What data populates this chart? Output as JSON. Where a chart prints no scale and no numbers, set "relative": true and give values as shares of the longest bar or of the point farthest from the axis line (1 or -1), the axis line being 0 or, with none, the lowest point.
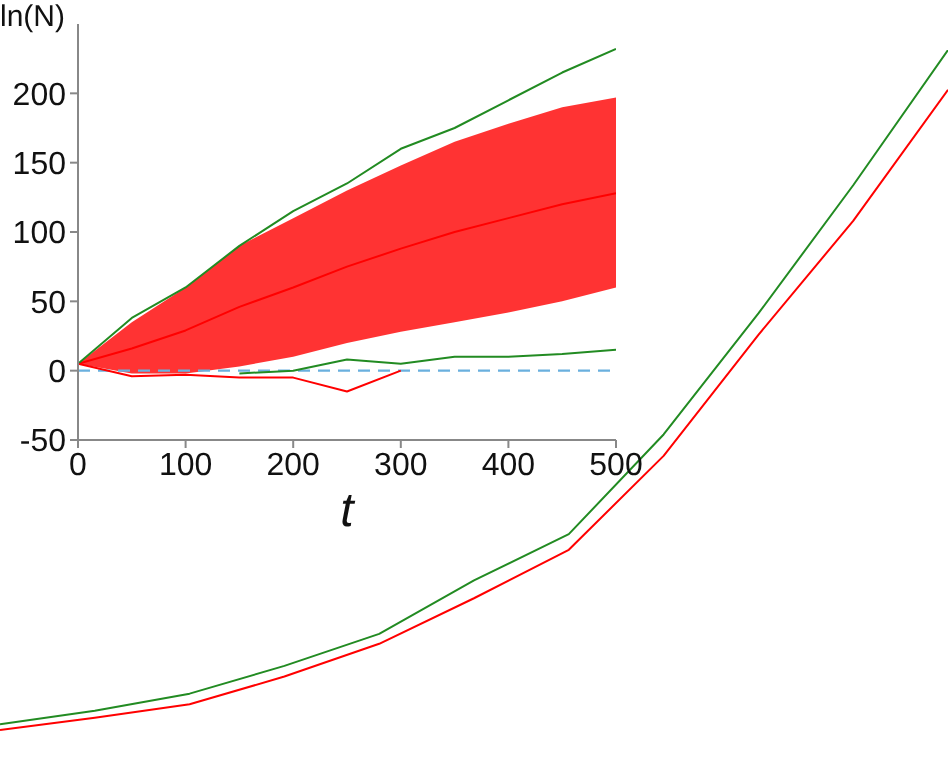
{
  "chart_data": [
    {
      "type": "line",
      "categories": [
        null,
        null,
        null,
        null,
        null,
        null,
        null,
        null,
        null,
        null,
        null
      ],
      "relative": true,
      "grid": false,
      "legend": false,
      "series": [
        {
          "color": "#228b22",
          "values": [
            0.053,
            0.072,
            0.096,
            0.135,
            0.18,
            0.255,
            0.32,
            0.46,
            0.63,
            0.81,
            1.0
          ]
        },
        {
          "color": "#ff0000",
          "values": [
            0.045,
            0.062,
            0.081,
            0.12,
            0.166,
            0.23,
            0.298,
            0.43,
            0.6,
            0.76,
            0.944
          ]
        }
      ]
    },
    {
      "type": "line",
      "xlabel": "t",
      "ylabel": "ln(N)",
      "xlim": [
        0,
        500
      ],
      "ylim": [
        -50,
        250
      ],
      "xticks": [
        0,
        100,
        200,
        300,
        400,
        500
      ],
      "yticks": [
        -50,
        0,
        50,
        100,
        150,
        200
      ],
      "grid": false,
      "legend": false,
      "ref_lines": [
        {
          "axis": "y",
          "value": 0,
          "color": "#6ab0de",
          "line_style": "dashed"
        }
      ],
      "series": [
        {
          "color": "#ff0000",
          "x": [
            0,
            50,
            100,
            150,
            200,
            250,
            300,
            350,
            400,
            450,
            500
          ],
          "values": [
            5,
            16,
            29,
            46,
            60,
            75,
            88,
            100,
            110,
            120,
            128
          ],
          "lower": [
            5,
            -2,
            -2,
            3,
            10,
            20,
            28,
            35,
            42,
            50,
            60
          ],
          "upper": [
            5,
            35,
            60,
            90,
            110,
            130,
            148,
            165,
            178,
            190,
            197
          ]
        },
        {
          "color": "#228b22",
          "x": [
            0,
            50,
            100,
            150,
            200,
            250,
            300,
            350,
            400,
            450,
            500
          ],
          "values": [
            5,
            38,
            60,
            90,
            115,
            135,
            160,
            175,
            195,
            215,
            232
          ]
        },
        {
          "color": "#228b22",
          "x": [
            150,
            200,
            250,
            300,
            350,
            400,
            450,
            500
          ],
          "values": [
            -2,
            0,
            8,
            5,
            10,
            10,
            12,
            15
          ]
        },
        {
          "color": "#ff0000",
          "x": [
            0,
            50,
            100,
            150,
            200,
            250,
            300
          ],
          "values": [
            5,
            -4,
            -3,
            -5,
            -5,
            -15,
            0
          ]
        }
      ]
    }
  ]
}
